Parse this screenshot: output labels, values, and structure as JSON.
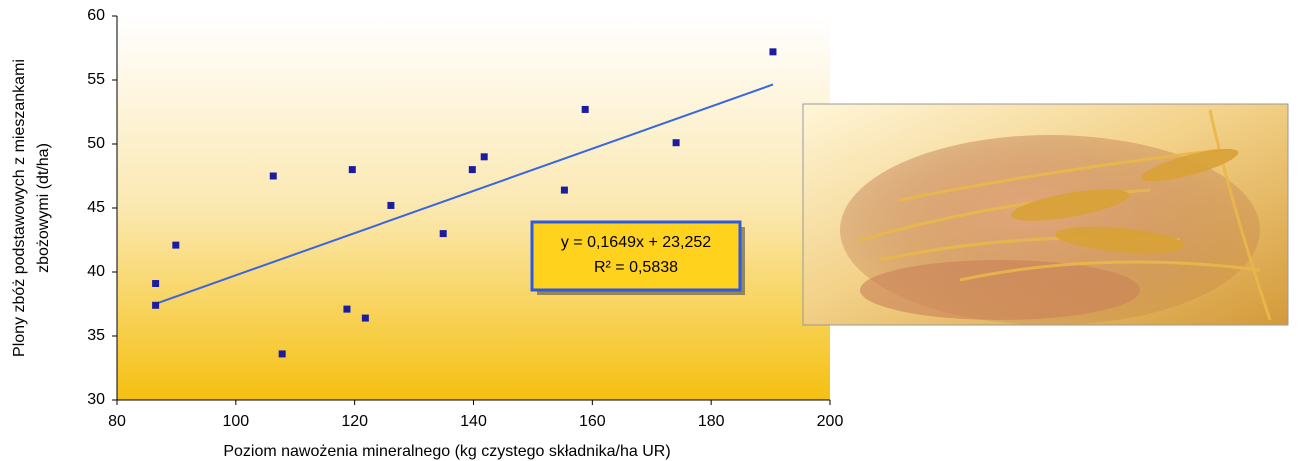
{
  "chart_data": {
    "type": "scatter",
    "x_label": "Poziom nawożenia mineralnego (kg czystego składnika/ha UR)",
    "y_label": [
      "Plony zbóż podstawowych z mieszankami",
      "zbożowymi (dt/ha)"
    ],
    "x": [
      86.5,
      86.5,
      89.9,
      106.3,
      107.8,
      118.7,
      119.6,
      121.8,
      126.1,
      134.9,
      139.8,
      141.8,
      155.3,
      158.8,
      174.1,
      190.4
    ],
    "values": [
      39.1,
      37.4,
      42.1,
      47.5,
      33.6,
      37.1,
      48.0,
      36.4,
      45.2,
      43.0,
      48.0,
      49.0,
      46.4,
      52.7,
      50.1,
      57.2
    ],
    "color": "#1c1c9e",
    "xlim": [
      80,
      200
    ],
    "xticks": [
      80,
      100,
      120,
      140,
      160,
      180,
      200
    ],
    "ylim": [
      30,
      60
    ],
    "yticks": [
      30,
      35,
      40,
      45,
      50,
      55,
      60
    ],
    "trendline": {
      "slope": 0.1649,
      "intercept": 23.252,
      "color": "#3a66dd",
      "equation": "y = 0,1649x + 23,252",
      "r_squared": "R² = 0,5838"
    }
  }
}
